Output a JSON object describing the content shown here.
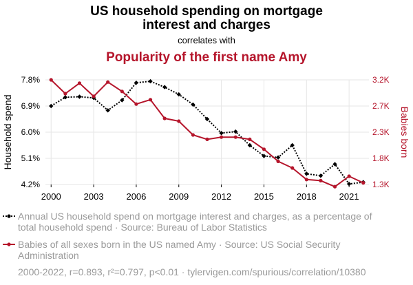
{
  "chart_data": {
    "type": "line",
    "title": "US household spending on mortgage interest and charges",
    "title_lines": [
      "US household spending on mortgage",
      "interest and charges"
    ],
    "connector": "correlates with",
    "subtitle": "Popularity of the first name Amy",
    "x": [
      2000,
      2001,
      2002,
      2003,
      2004,
      2005,
      2006,
      2007,
      2008,
      2009,
      2010,
      2011,
      2012,
      2013,
      2014,
      2015,
      2016,
      2017,
      2018,
      2019,
      2020,
      2021,
      2022
    ],
    "xlim": [
      1999.6,
      2022.4
    ],
    "x_ticks": [
      2000,
      2003,
      2006,
      2009,
      2012,
      2015,
      2018,
      2021
    ],
    "ylabel_left": "Household spend",
    "ylabel_right": "Babies born",
    "ylim_left": [
      4.2,
      7.8
    ],
    "ylim_right": [
      1300,
      3200
    ],
    "y_ticks_left": [
      "7.8%",
      "6.9%",
      "6.0%",
      "5.1%",
      "4.2%"
    ],
    "y_ticks_right": [
      "3.2K",
      "2.7K",
      "2.3K",
      "1.8K",
      "1.3K"
    ],
    "grid": true,
    "series": [
      {
        "axis": "left",
        "color": "#000000",
        "style": "dotted",
        "values": [
          6.9,
          7.2,
          7.22,
          7.18,
          6.75,
          7.1,
          7.7,
          7.75,
          7.55,
          7.3,
          6.95,
          6.45,
          5.97,
          6.02,
          5.55,
          5.18,
          5.13,
          5.55,
          4.57,
          4.5,
          4.9,
          4.22,
          4.28
        ]
      },
      {
        "axis": "right",
        "color": "#b5152b",
        "style": "solid",
        "values": [
          3200,
          2950,
          3140,
          2900,
          3160,
          2990,
          2760,
          2840,
          2500,
          2450,
          2200,
          2120,
          2160,
          2160,
          2120,
          1940,
          1720,
          1600,
          1390,
          1370,
          1260,
          1450,
          1330
        ]
      }
    ],
    "legend": [
      {
        "color": "#000000",
        "style": "dotted",
        "lines": [
          "Annual US household spend on mortgage interest and charges, as a percentage of",
          "total household spend · Source: Bureau of Labor Statistics"
        ]
      },
      {
        "color": "#b5152b",
        "style": "solid",
        "lines": [
          "Babies of all sexes born in the US named Amy · Source: US Social Security",
          "Administration"
        ]
      }
    ],
    "footer": "2000-2022, r=0.893, r²=0.797, p<0.01 · tylervigen.com/spurious/correlation/10380"
  }
}
